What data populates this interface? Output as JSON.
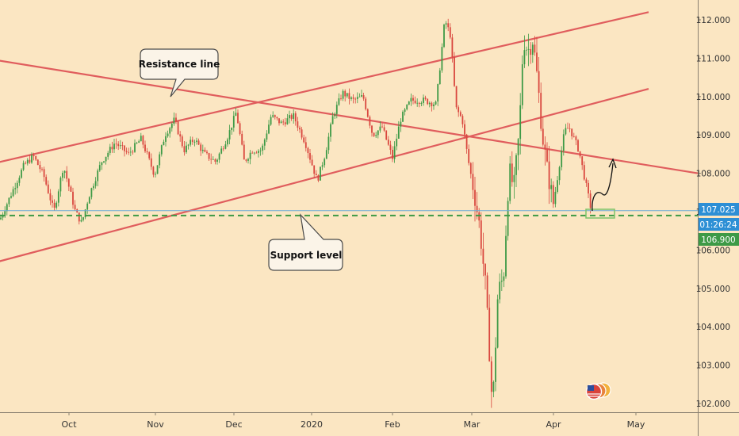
{
  "chart_data": {
    "type": "candlestick",
    "x_tick_labels": [
      "Oct",
      "Nov",
      "Dec",
      "2020",
      "Feb",
      "Mar",
      "Apr",
      "May"
    ],
    "y_tick_labels": [
      "112.000",
      "111.000",
      "110.000",
      "109.000",
      "108.000",
      "107.000",
      "106.000",
      "105.000",
      "104.000",
      "103.000",
      "102.000"
    ],
    "ylim": [
      101.75,
      112.45
    ],
    "price_labels": {
      "current_price": "107.025",
      "countdown": "01:26:24",
      "support_price": "106.900"
    },
    "annotations": {
      "resistance": "Resistance line",
      "support": "Support level"
    },
    "levels": {
      "current": 107.025,
      "support": 106.9
    },
    "trendlines": [
      {
        "role": "resistance",
        "from": [
          "Sep 1",
          111.0
        ],
        "to": [
          "Apr 23",
          108.0
        ]
      },
      {
        "role": "channel-upper",
        "from": [
          "Sep 1",
          108.2
        ],
        "to": [
          "Apr 22",
          112.2
        ]
      },
      {
        "role": "channel-lower",
        "from": [
          "Sep 1",
          105.6
        ],
        "to": [
          "Apr 22",
          110.2
        ]
      }
    ],
    "price_path": [
      [
        0,
        106.8
      ],
      [
        30,
        108.2
      ],
      [
        42,
        108.45
      ],
      [
        55,
        107.95
      ],
      [
        68,
        107.0
      ],
      [
        80,
        108.2
      ],
      [
        95,
        107.0
      ],
      [
        103,
        106.7
      ],
      [
        112,
        107.4
      ],
      [
        128,
        108.3
      ],
      [
        145,
        108.8
      ],
      [
        162,
        108.5
      ],
      [
        178,
        108.9
      ],
      [
        195,
        107.95
      ],
      [
        208,
        109.0
      ],
      [
        220,
        109.4
      ],
      [
        232,
        108.6
      ],
      [
        245,
        108.9
      ],
      [
        258,
        108.5
      ],
      [
        272,
        108.3
      ],
      [
        288,
        109.0
      ],
      [
        298,
        109.6
      ],
      [
        308,
        108.3
      ],
      [
        318,
        108.6
      ],
      [
        330,
        108.6
      ],
      [
        342,
        109.5
      ],
      [
        355,
        109.3
      ],
      [
        370,
        109.5
      ],
      [
        385,
        108.8
      ],
      [
        400,
        107.8
      ],
      [
        410,
        108.5
      ],
      [
        420,
        109.5
      ],
      [
        432,
        110.1
      ],
      [
        445,
        109.9
      ],
      [
        458,
        110.0
      ],
      [
        470,
        109.0
      ],
      [
        482,
        109.2
      ],
      [
        495,
        108.4
      ],
      [
        505,
        109.4
      ],
      [
        518,
        109.9
      ],
      [
        535,
        109.9
      ],
      [
        550,
        109.8
      ],
      [
        556,
        111.0
      ],
      [
        561,
        112.0
      ],
      [
        568,
        111.6
      ],
      [
        575,
        109.7
      ],
      [
        583,
        109.4
      ],
      [
        590,
        108.4
      ],
      [
        598,
        107.5
      ],
      [
        605,
        106.6
      ],
      [
        612,
        105.1
      ],
      [
        618,
        103.1
      ],
      [
        621,
        101.8
      ],
      [
        628,
        104.9
      ],
      [
        635,
        105.3
      ],
      [
        642,
        108.1
      ],
      [
        648,
        107.6
      ],
      [
        655,
        109.1
      ],
      [
        660,
        111.5
      ],
      [
        666,
        111.2
      ],
      [
        672,
        111.5
      ],
      [
        678,
        110.4
      ],
      [
        684,
        109.0
      ],
      [
        690,
        108.1
      ],
      [
        698,
        107.2
      ],
      [
        706,
        108.3
      ],
      [
        712,
        109.1
      ],
      [
        718,
        109.2
      ],
      [
        724,
        108.9
      ],
      [
        730,
        108.6
      ],
      [
        737,
        107.9
      ],
      [
        745,
        107.1
      ]
    ],
    "grid": false,
    "legend": "none"
  }
}
